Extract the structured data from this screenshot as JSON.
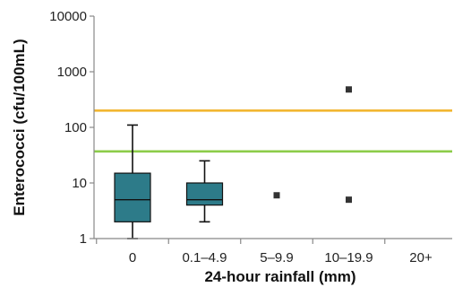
{
  "chart_data": {
    "type": "box",
    "title": "",
    "xlabel": "24-hour rainfall (mm)",
    "ylabel": "Enterococci (cfu/100mL)",
    "y_scale": "log",
    "ylim": [
      1,
      10000
    ],
    "y_ticks": [
      1,
      10,
      100,
      1000,
      10000
    ],
    "y_tick_labels": [
      "1",
      "10",
      "100",
      "1000",
      "10000"
    ],
    "categories": [
      "0",
      "0.1–4.9",
      "5–9.9",
      "10–19.9",
      "20+"
    ],
    "boxes": [
      {
        "category": "0",
        "min": 1,
        "q1": 2,
        "median": 5,
        "q3": 15,
        "max": 110
      },
      {
        "category": "0.1–4.9",
        "min": 2,
        "q1": 4,
        "median": 5,
        "q3": 10,
        "max": 25
      }
    ],
    "points": [
      {
        "category": "5–9.9",
        "value": 6
      },
      {
        "category": "10–19.9",
        "value": 5
      },
      {
        "category": "10–19.9",
        "value": 480
      }
    ],
    "reference_lines": [
      {
        "value": 200,
        "color": "#f2b632"
      },
      {
        "value": 37,
        "color": "#8ccc4a"
      }
    ],
    "box_color": "#2d7b89",
    "box_edge_color": "#111111",
    "point_color": "#333333",
    "grid": false
  }
}
